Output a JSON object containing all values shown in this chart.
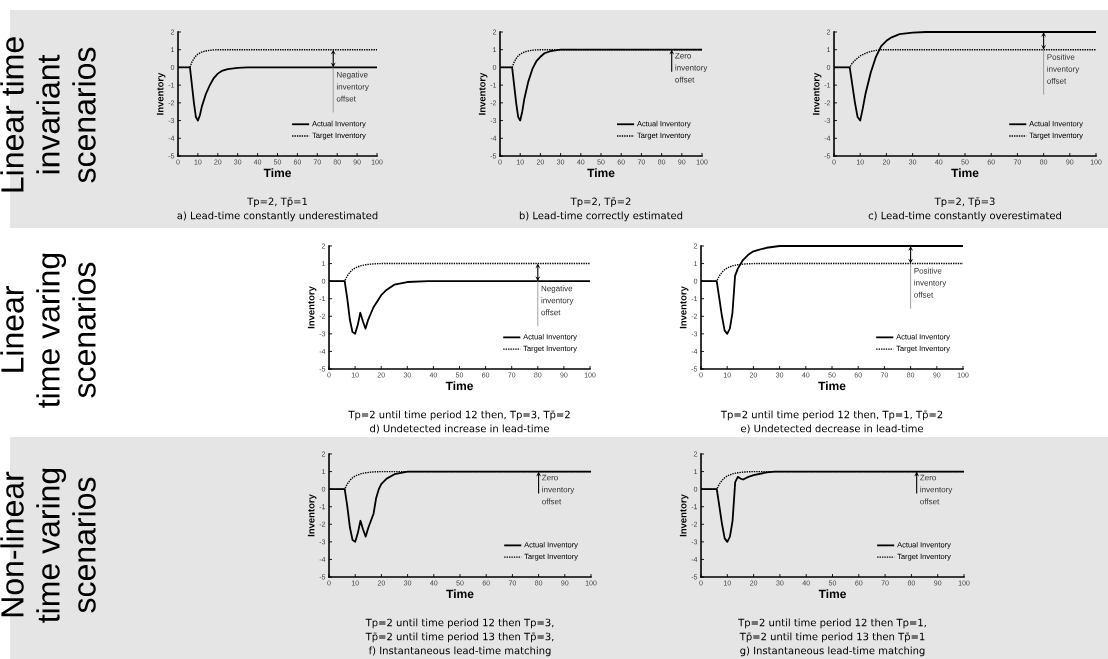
{
  "chart_data": [
    {
      "type": "other",
      "annotations": [
        "Linear time",
        "invariant",
        "scenarios"
      ]
    },
    {
      "type": "line",
      "xlabel": "Time",
      "ylabel": "Inventory",
      "xlim": [
        0,
        100
      ],
      "ylim": [
        -5,
        2
      ],
      "xticks": [
        0,
        10,
        20,
        30,
        40,
        50,
        60,
        70,
        80,
        90,
        100
      ],
      "yticks": [
        -5,
        -4,
        -3,
        -2,
        -1,
        0,
        1,
        2
      ],
      "legend": "bottom right",
      "series": [
        {
          "name": "Actual Inventory",
          "color": "#000000",
          "line_style": "solid",
          "x": [
            0,
            6,
            7,
            8,
            9,
            10,
            11,
            12,
            14,
            16,
            18,
            20,
            22,
            25,
            30,
            35,
            100
          ],
          "values": [
            0,
            0,
            -1,
            -2,
            -2.8,
            -3,
            -2.7,
            -2.2,
            -1.5,
            -1,
            -0.6,
            -0.35,
            -0.2,
            -0.1,
            -0.02,
            0,
            0
          ]
        },
        {
          "name": "Target Inventory",
          "color": "#000000",
          "line_style": "dotted",
          "x": [
            0,
            6,
            7,
            8,
            9,
            10,
            12,
            14,
            16,
            18,
            20,
            100
          ],
          "values": [
            0,
            0,
            0.3,
            0.5,
            0.65,
            0.75,
            0.87,
            0.93,
            0.97,
            0.99,
            1,
            1
          ]
        }
      ],
      "annotations": [
        "Tp=2, Tp̄=1",
        "a) Lead-time constantly underestimated",
        {
          "text": "Negative inventory offset",
          "x": 78,
          "y": 0
        }
      ]
    },
    {
      "type": "line",
      "xlabel": "Time",
      "ylabel": "Inventory",
      "xlim": [
        0,
        100
      ],
      "ylim": [
        -5,
        2
      ],
      "xticks": [
        0,
        10,
        20,
        30,
        40,
        50,
        60,
        70,
        80,
        90,
        100
      ],
      "yticks": [
        -5,
        -4,
        -3,
        -2,
        -1,
        0,
        1,
        2
      ],
      "legend": "bottom right",
      "series": [
        {
          "name": "Actual Inventory",
          "color": "#000000",
          "line_style": "solid",
          "x": [
            0,
            6,
            7,
            8,
            9,
            10,
            11,
            12,
            14,
            16,
            18,
            20,
            22,
            25,
            30,
            100
          ],
          "values": [
            0,
            0,
            -1,
            -2,
            -2.8,
            -3,
            -2.5,
            -1.8,
            -0.8,
            -0.1,
            0.35,
            0.6,
            0.8,
            0.92,
            1,
            1
          ]
        },
        {
          "name": "Target Inventory",
          "color": "#000000",
          "line_style": "dotted",
          "x": [
            0,
            6,
            7,
            8,
            9,
            10,
            12,
            14,
            16,
            18,
            20,
            100
          ],
          "values": [
            0,
            0,
            0.3,
            0.5,
            0.65,
            0.75,
            0.87,
            0.93,
            0.97,
            0.99,
            1,
            1
          ]
        }
      ],
      "annotations": [
        "Tp=2, Tp̄=2",
        "b) Lead-time correctly estimated",
        {
          "text": "Zero inventory offset",
          "x": 85,
          "y": 1
        }
      ]
    },
    {
      "type": "line",
      "xlabel": "Time",
      "ylabel": "Inventory",
      "xlim": [
        0,
        100
      ],
      "ylim": [
        -5,
        2
      ],
      "xticks": [
        0,
        10,
        20,
        30,
        40,
        50,
        60,
        70,
        80,
        90,
        100
      ],
      "yticks": [
        -5,
        -4,
        -3,
        -2,
        -1,
        0,
        1,
        2
      ],
      "legend": "bottom right",
      "series": [
        {
          "name": "Actual Inventory",
          "color": "#000000",
          "line_style": "solid",
          "x": [
            0,
            6,
            7,
            8,
            9,
            10,
            11,
            12,
            14,
            16,
            18,
            20,
            22,
            25,
            30,
            35,
            100
          ],
          "values": [
            0,
            0,
            -1,
            -2,
            -2.8,
            -3,
            -2.3,
            -1.5,
            -0.3,
            0.6,
            1.2,
            1.5,
            1.7,
            1.88,
            1.97,
            2,
            2
          ]
        },
        {
          "name": "Target Inventory",
          "color": "#000000",
          "line_style": "dotted",
          "x": [
            0,
            6,
            7,
            8,
            10,
            12,
            14,
            16,
            18,
            100
          ],
          "values": [
            0,
            0,
            0.25,
            0.4,
            0.65,
            0.8,
            0.9,
            0.96,
            1,
            1
          ]
        }
      ],
      "annotations": [
        "Tp=2, Tp̄=3",
        "c) Lead-time constantly overestimated",
        {
          "text": "Positive inventory offset",
          "x": 80,
          "y": 1
        }
      ]
    },
    {
      "type": "other",
      "annotations": [
        "Linear",
        "time varing",
        "scenarios"
      ]
    },
    {
      "type": "line",
      "xlabel": "Time",
      "ylabel": "Inventory",
      "xlim": [
        0,
        100
      ],
      "ylim": [
        -5,
        2
      ],
      "xticks": [
        0,
        10,
        20,
        30,
        40,
        50,
        60,
        70,
        80,
        90,
        100
      ],
      "yticks": [
        -5,
        -4,
        -3,
        -2,
        -1,
        0,
        1,
        2
      ],
      "legend": "bottom right",
      "series": [
        {
          "name": "Actual Inventory",
          "color": "#000000",
          "line_style": "solid",
          "x": [
            0,
            6,
            7,
            8,
            9,
            10,
            11,
            12,
            13,
            14,
            15,
            17,
            20,
            22,
            25,
            30,
            38,
            100
          ],
          "values": [
            0,
            0,
            -1,
            -2.2,
            -2.9,
            -3,
            -2.5,
            -1.8,
            -2.3,
            -2.7,
            -2.2,
            -1.5,
            -0.8,
            -0.5,
            -0.2,
            -0.05,
            0,
            0
          ]
        },
        {
          "name": "Target Inventory",
          "color": "#000000",
          "line_style": "dotted",
          "x": [
            0,
            6,
            7,
            8,
            9,
            10,
            12,
            14,
            16,
            18,
            20,
            100
          ],
          "values": [
            0,
            0,
            0.3,
            0.5,
            0.65,
            0.75,
            0.87,
            0.93,
            0.97,
            0.99,
            1,
            1
          ]
        }
      ],
      "annotations": [
        "Tp=2 until time period 12 then, Tp=3, Tp̄=2",
        "d) Undetected increase in lead-time",
        {
          "text": "Negative inventory offset",
          "x": 80,
          "y": 0
        }
      ]
    },
    {
      "type": "line",
      "xlabel": "Time",
      "ylabel": "Inventory",
      "xlim": [
        0,
        100
      ],
      "ylim": [
        -5,
        2
      ],
      "xticks": [
        0,
        10,
        20,
        30,
        40,
        50,
        60,
        70,
        80,
        90,
        100
      ],
      "yticks": [
        -5,
        -4,
        -3,
        -2,
        -1,
        0,
        1,
        2
      ],
      "legend": "bottom right",
      "series": [
        {
          "name": "Actual Inventory",
          "color": "#000000",
          "line_style": "solid",
          "x": [
            0,
            6,
            7,
            8,
            9,
            10,
            11,
            12,
            13,
            14,
            16,
            18,
            20,
            25,
            30,
            100
          ],
          "values": [
            0,
            0,
            -1,
            -2,
            -2.8,
            -3,
            -2.7,
            -1.8,
            0.3,
            0.7,
            1.2,
            1.5,
            1.7,
            1.9,
            2,
            2
          ]
        },
        {
          "name": "Target Inventory",
          "color": "#000000",
          "line_style": "dotted",
          "x": [
            0,
            6,
            7,
            8,
            9,
            10,
            12,
            14,
            16,
            18,
            20,
            100
          ],
          "values": [
            0,
            0,
            0.3,
            0.5,
            0.65,
            0.75,
            0.87,
            0.93,
            0.97,
            0.99,
            1,
            1
          ]
        }
      ],
      "annotations": [
        "Tp=2 until time period 12 then, Tp=1, Tp̄=2",
        "e) Undetected decrease in lead-time",
        {
          "text": "Positive inventory offset",
          "x": 80,
          "y": 1
        }
      ]
    },
    {
      "type": "other",
      "annotations": [
        "Non-linear",
        "time varing",
        "scenarios"
      ]
    },
    {
      "type": "line",
      "xlabel": "Time",
      "ylabel": "Inventory",
      "xlim": [
        0,
        100
      ],
      "ylim": [
        -5,
        2
      ],
      "xticks": [
        0,
        10,
        20,
        30,
        40,
        50,
        60,
        70,
        80,
        90,
        100
      ],
      "yticks": [
        -5,
        -4,
        -3,
        -2,
        -1,
        0,
        1,
        2
      ],
      "legend": "bottom right",
      "series": [
        {
          "name": "Actual Inventory",
          "color": "#000000",
          "line_style": "solid",
          "x": [
            0,
            6,
            7,
            8,
            9,
            10,
            11,
            12,
            13,
            14,
            15,
            16,
            17,
            18,
            19,
            20,
            22,
            25,
            30,
            100
          ],
          "values": [
            0,
            0,
            -1,
            -2.2,
            -2.9,
            -3,
            -2.5,
            -1.8,
            -2.3,
            -2.7,
            -2.2,
            -1.8,
            -1.4,
            -0.5,
            0,
            0.3,
            0.6,
            0.85,
            1,
            1
          ]
        },
        {
          "name": "Target Inventory",
          "color": "#000000",
          "line_style": "dotted",
          "x": [
            0,
            6,
            7,
            8,
            9,
            10,
            12,
            14,
            16,
            18,
            20,
            100
          ],
          "values": [
            0,
            0,
            0.3,
            0.5,
            0.65,
            0.75,
            0.87,
            0.93,
            0.97,
            0.99,
            1,
            1
          ]
        }
      ],
      "annotations": [
        "Tp=2 until time period 12 then Tp=3,",
        "Tp̄=2 until time period 13 then Tp̄=3,",
        "f) Instantaneous lead-time matching",
        {
          "text": "Zero inventory offset",
          "x": 80,
          "y": 1
        }
      ]
    },
    {
      "type": "line",
      "xlabel": "Time",
      "ylabel": "Inventory",
      "xlim": [
        0,
        100
      ],
      "ylim": [
        -5,
        2
      ],
      "xticks": [
        0,
        10,
        20,
        30,
        40,
        50,
        60,
        70,
        80,
        90,
        100
      ],
      "yticks": [
        -5,
        -4,
        -3,
        -2,
        -1,
        0,
        1,
        2
      ],
      "legend": "bottom right",
      "series": [
        {
          "name": "Actual Inventory",
          "color": "#000000",
          "line_style": "solid",
          "x": [
            0,
            6,
            7,
            8,
            9,
            10,
            11,
            12,
            13,
            14,
            15,
            16,
            18,
            20,
            25,
            28,
            100
          ],
          "values": [
            0,
            0,
            -1,
            -2,
            -2.8,
            -3,
            -2.7,
            -1.8,
            0.4,
            0.7,
            0.6,
            0.55,
            0.7,
            0.8,
            0.95,
            1,
            1
          ]
        },
        {
          "name": "Target Inventory",
          "color": "#000000",
          "line_style": "dotted",
          "x": [
            0,
            6,
            7,
            8,
            9,
            10,
            12,
            14,
            16,
            18,
            20,
            100
          ],
          "values": [
            0,
            0,
            0.3,
            0.5,
            0.65,
            0.75,
            0.87,
            0.93,
            0.97,
            0.99,
            1,
            1
          ]
        }
      ],
      "annotations": [
        "Tp=2 until time period 12 then Tp=1,",
        "Tp̄=2 until time period 13 then Tp̄=1",
        "g) Instantaneous lead-time matching",
        {
          "text": "Zero inventory offset",
          "x": 82,
          "y": 1
        }
      ]
    }
  ]
}
